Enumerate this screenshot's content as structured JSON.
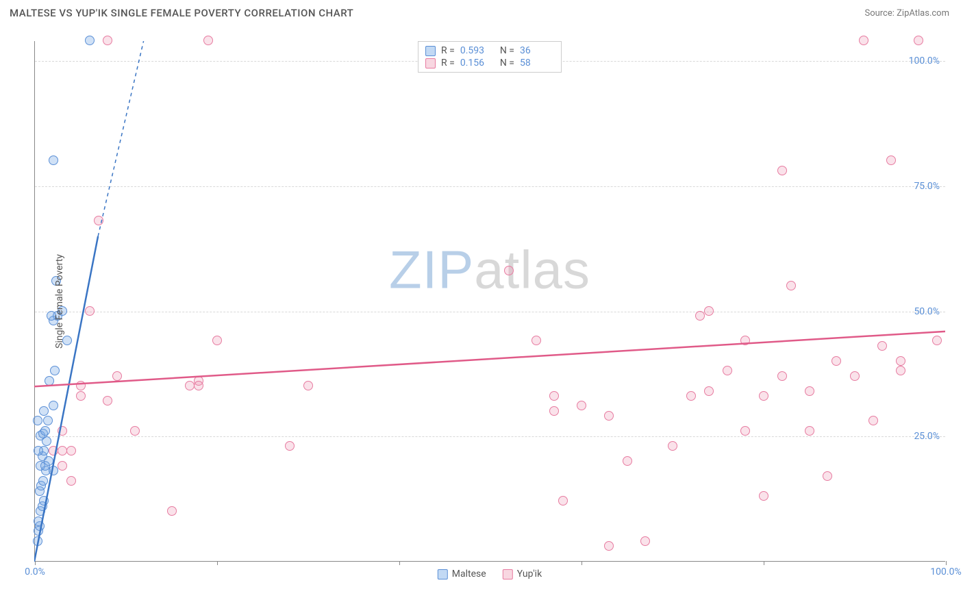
{
  "header": {
    "title": "MALTESE VS YUP'IK SINGLE FEMALE POVERTY CORRELATION CHART",
    "source": "Source: ZipAtlas.com"
  },
  "watermark": {
    "part1": "ZIP",
    "part2": "atlas"
  },
  "chart": {
    "type": "scatter",
    "y_axis_title": "Single Female Poverty",
    "background_color": "#ffffff",
    "grid_color": "#d8d8d8",
    "axis_color": "#888888",
    "xlim": [
      0,
      100
    ],
    "ylim": [
      0,
      104
    ],
    "x_ticks": [
      0,
      20,
      40,
      60,
      80,
      100
    ],
    "x_tick_labels": {
      "0": "0.0%",
      "100": "100.0%"
    },
    "y_ticks": [
      25,
      50,
      75,
      100
    ],
    "y_tick_labels": {
      "25": "25.0%",
      "50": "50.0%",
      "75": "75.0%",
      "100": "100.0%"
    },
    "marker_radius": 7,
    "tick_label_color": "#5a8fd6",
    "tick_label_fontsize": 14,
    "series": [
      {
        "name": "Maltese",
        "color_fill": "rgba(120,170,230,0.35)",
        "color_stroke": "#5a8fd6",
        "R": "0.593",
        "N": "36",
        "trend": {
          "x1": 0,
          "y1": 0,
          "x2": 7,
          "y2": 65,
          "extend_x2": 12,
          "extend_y2": 104,
          "stroke": "#3a75c4",
          "width": 2.5
        },
        "points": [
          [
            0.3,
            4
          ],
          [
            0.4,
            6
          ],
          [
            0.5,
            7
          ],
          [
            0.4,
            8
          ],
          [
            0.6,
            10
          ],
          [
            0.8,
            11
          ],
          [
            1.0,
            12
          ],
          [
            0.5,
            14
          ],
          [
            0.7,
            15
          ],
          [
            0.9,
            16
          ],
          [
            1.2,
            18
          ],
          [
            0.6,
            19
          ],
          [
            1.1,
            19
          ],
          [
            2.0,
            18
          ],
          [
            0.8,
            21
          ],
          [
            1.0,
            22
          ],
          [
            0.4,
            22
          ],
          [
            1.3,
            24
          ],
          [
            0.6,
            25
          ],
          [
            0.9,
            25.5
          ],
          [
            1.1,
            26
          ],
          [
            1.4,
            28
          ],
          [
            0.3,
            28
          ],
          [
            1.0,
            30
          ],
          [
            2.0,
            31
          ],
          [
            1.6,
            36
          ],
          [
            2.2,
            38
          ],
          [
            3.5,
            44
          ],
          [
            2.0,
            48
          ],
          [
            2.5,
            49
          ],
          [
            3.0,
            50
          ],
          [
            2.3,
            56
          ],
          [
            6,
            104
          ],
          [
            2.0,
            80
          ],
          [
            1.8,
            49
          ],
          [
            1.5,
            20
          ]
        ]
      },
      {
        "name": "Yup'ik",
        "color_fill": "rgba(235,140,170,0.25)",
        "color_stroke": "#e77ba0",
        "R": "0.156",
        "N": "58",
        "trend": {
          "x1": 0,
          "y1": 35,
          "x2": 100,
          "y2": 46,
          "stroke": "#e05a88",
          "width": 2.5
        },
        "points": [
          [
            2,
            22
          ],
          [
            3,
            19
          ],
          [
            3,
            22
          ],
          [
            4,
            22
          ],
          [
            4,
            16
          ],
          [
            3,
            26
          ],
          [
            5,
            33
          ],
          [
            5,
            35
          ],
          [
            6,
            50
          ],
          [
            7,
            68
          ],
          [
            8,
            104
          ],
          [
            8,
            32
          ],
          [
            9,
            37
          ],
          [
            11,
            26
          ],
          [
            15,
            10
          ],
          [
            17,
            35
          ],
          [
            18,
            36
          ],
          [
            18,
            35
          ],
          [
            19,
            104
          ],
          [
            20,
            44
          ],
          [
            28,
            23
          ],
          [
            30,
            35
          ],
          [
            52,
            58
          ],
          [
            55,
            44
          ],
          [
            57,
            30
          ],
          [
            57,
            33
          ],
          [
            58,
            12
          ],
          [
            60,
            31
          ],
          [
            63,
            3
          ],
          [
            63,
            29
          ],
          [
            65,
            20
          ],
          [
            67,
            4
          ],
          [
            70,
            23
          ],
          [
            72,
            33
          ],
          [
            73,
            49
          ],
          [
            74,
            34
          ],
          [
            74,
            50
          ],
          [
            76,
            38
          ],
          [
            78,
            26
          ],
          [
            78,
            44
          ],
          [
            80,
            13
          ],
          [
            80,
            33
          ],
          [
            82,
            78
          ],
          [
            82,
            37
          ],
          [
            83,
            55
          ],
          [
            85,
            34
          ],
          [
            85,
            26
          ],
          [
            87,
            17
          ],
          [
            88,
            40
          ],
          [
            90,
            37
          ],
          [
            91,
            104
          ],
          [
            92,
            28
          ],
          [
            93,
            43
          ],
          [
            94,
            80
          ],
          [
            95,
            38
          ],
          [
            95,
            40
          ],
          [
            97,
            104
          ],
          [
            99,
            44
          ]
        ]
      }
    ],
    "legend": {
      "stats_labels": {
        "R": "R =",
        "N": "N ="
      }
    }
  }
}
